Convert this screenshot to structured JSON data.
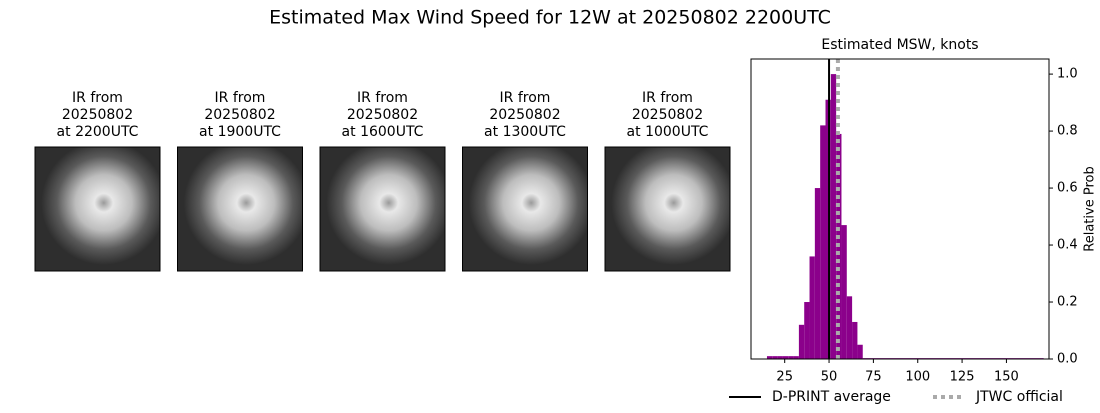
{
  "title": "Estimated Max Wind Speed for 12W at 20250802 2200UTC",
  "panels": [
    {
      "lines": [
        "IR from",
        "20250802",
        "at 2200UTC"
      ]
    },
    {
      "lines": [
        "IR from",
        "20250802",
        "at 1900UTC"
      ]
    },
    {
      "lines": [
        "IR from",
        "20250802",
        "at 1600UTC"
      ]
    },
    {
      "lines": [
        "IR from",
        "20250802",
        "at 1300UTC"
      ]
    },
    {
      "lines": [
        "IR from",
        "20250802",
        "at 1000UTC"
      ]
    }
  ],
  "chart_data": {
    "type": "histogram",
    "title": "Estimated MSW, knots",
    "y_label": "Relative Prob",
    "color": "#8b008b",
    "bins": [
      15,
      18,
      21,
      24,
      27,
      30,
      33,
      36,
      39,
      42,
      45,
      48,
      51,
      54,
      57,
      60,
      63,
      66,
      69,
      171
    ],
    "values": [
      0.01,
      0.01,
      0.01,
      0.01,
      0.01,
      0.01,
      0.12,
      0.2,
      0.36,
      0.6,
      0.82,
      0.91,
      1.0,
      0.79,
      0.47,
      0.22,
      0.13,
      0.05,
      0.003
    ],
    "xlim": [
      6,
      174
    ],
    "xticks": [
      25,
      50,
      75,
      100,
      125,
      150
    ],
    "ylim": [
      0,
      1.053
    ],
    "yticks": [
      {
        "value": 0,
        "label": "0.0"
      },
      0.2,
      0.4,
      0.6,
      0.8,
      {
        "value": 1,
        "label": "1.0"
      }
    ],
    "lines": [
      {
        "name": "D-PRINT average",
        "value": 50,
        "color": "#000000",
        "style": "solid"
      },
      {
        "name": "JTWC official",
        "value": 55,
        "color": "#aaaaaa",
        "style": "dotted"
      }
    ]
  }
}
